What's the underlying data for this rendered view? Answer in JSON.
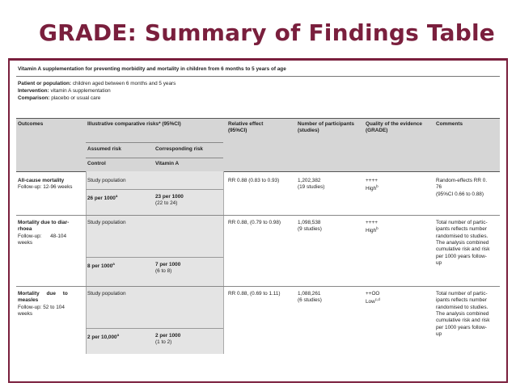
{
  "slide": {
    "title": "GRADE: Summary of Findings Table"
  },
  "table": {
    "caption": "Vitamin A supplementation for preventing morbidity and mortality in children from 6 months to 5 years of age",
    "population_label": "Patient or population:",
    "population": " children aged between 6 months and 5 years",
    "intervention_label": "Intervention:",
    "intervention": " vitamin A supplementation",
    "comparison_label": "Comparison:",
    "comparison": " placebo or usual care",
    "headers": {
      "outcomes": "Outcomes",
      "illustrative": "Illustrative comparative risks* (95%CI)",
      "assumed": "Assumed risk",
      "corresponding": "Corresponding risk",
      "control": "Control",
      "vitamin": "Vitamin A",
      "relative": "Relative effect\n(95%CI)",
      "participants": "Number of participants\n(studies)",
      "quality": "Quality of the evidence\n(GRADE)",
      "comments": "Comments"
    },
    "rows": [
      {
        "outcome_title": "All-cause mortality",
        "outcome_sub": "Follow-up: 12-96 weeks",
        "study_pop": "Study population",
        "assumed": "26 per 1000",
        "assumed_sup": "a",
        "corresponding": "23 per 1000",
        "corresponding_ci": "(22 to 24)",
        "relative": "RR 0.88 (0.83 to 0.93)",
        "participants": "1,202,382",
        "studies": "(19 studies)",
        "quality_symbols": "++++",
        "quality_text": "High",
        "quality_sup": "b",
        "comments": "Random-effects RR 0.\n76\n(95%CI 0.66 to 0.88)"
      },
      {
        "outcome_title": "Mortality due to diar-\nrhoea",
        "outcome_sub": "Follow-up:      48-104\nweeks",
        "study_pop": "Study population",
        "assumed": "8 per 1000",
        "assumed_sup": "a",
        "corresponding": "7 per 1000",
        "corresponding_ci": "(6 to 8)",
        "relative": "RR 0.88, (0.79 to 0.98)",
        "participants": "1,098,538",
        "studies": "(9 studies)",
        "quality_symbols": "++++",
        "quality_text": "High",
        "quality_sup": "b",
        "comments": "Total number of partic-\nipants reflects number\nrandomised to studies.\nThe analysis combined\ncumulative risk and risk\nper 1000 years follow-\nup"
      },
      {
        "outcome_title": "Mortality     due     to\nmeasles",
        "outcome_sub": "Follow-up: 52 to 104\nweeks",
        "study_pop": "Study population",
        "assumed": "2 per 10,000",
        "assumed_sup": "a",
        "corresponding": "2 per 1000",
        "corresponding_ci": "(1 to 2)",
        "relative": "RR 0.88, (0.69 to 1.11)",
        "participants": "1,088,261",
        "studies": "(6 studies)",
        "quality_symbols": "++OO",
        "quality_text": "Low",
        "quality_sup": "c,d",
        "comments": "Total number of partic-\nipants reflects number\nrandomised to studies.\nThe analysis combined\ncumulative risk and risk\nper 1000 years follow-\nup"
      }
    ]
  }
}
